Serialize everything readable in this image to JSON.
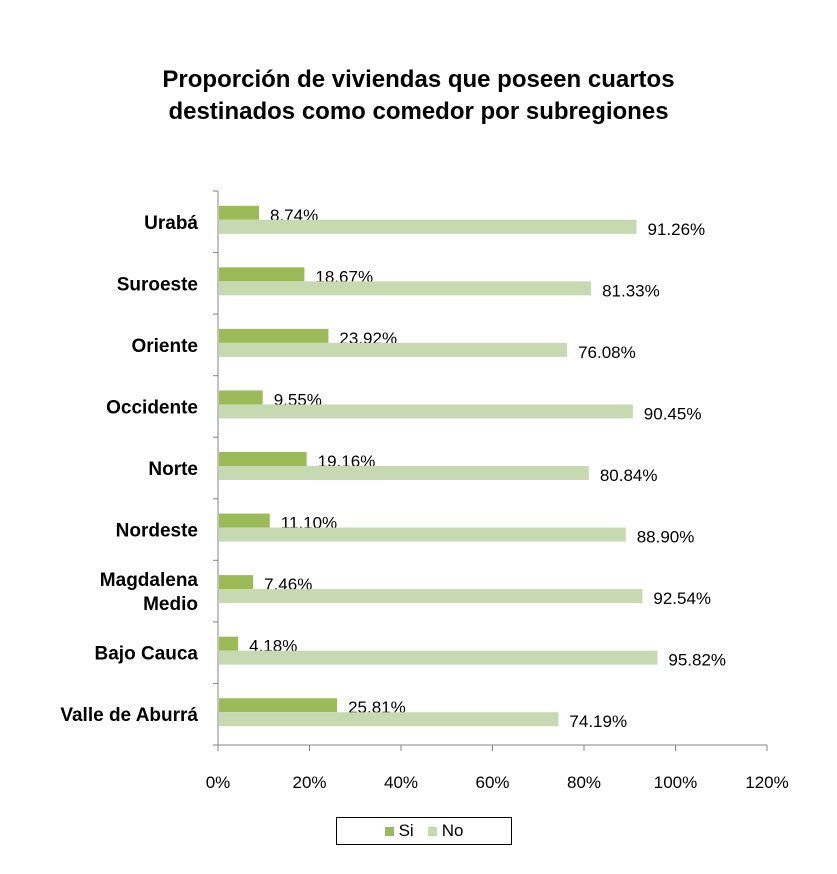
{
  "chart_data": {
    "type": "bar",
    "orientation": "horizontal",
    "title_lines": [
      "Proporción de viviendas que poseen cuartos",
      "destinados como comedor por subregiones"
    ],
    "categories": [
      "Urabá",
      "Suroeste",
      "Oriente",
      "Occidente",
      "Norte",
      "Nordeste",
      "Magdalena Medio",
      "Bajo Cauca",
      "Valle de Aburrá"
    ],
    "category_label_lines": [
      [
        "Urabá"
      ],
      [
        "Suroeste"
      ],
      [
        "Oriente"
      ],
      [
        "Occidente"
      ],
      [
        "Norte"
      ],
      [
        "Nordeste"
      ],
      [
        "Magdalena",
        "Medio"
      ],
      [
        "Bajo Cauca"
      ],
      [
        "Valle de Aburrá"
      ]
    ],
    "series": [
      {
        "name": "Si",
        "color": "#9bbb59",
        "values": [
          8.74,
          18.67,
          23.92,
          9.55,
          19.16,
          11.1,
          7.46,
          4.18,
          25.81
        ],
        "labels": [
          "8.74%",
          "18.67%",
          "23.92%",
          "9.55%",
          "19.16%",
          "11.10%",
          "7.46%",
          "4.18%",
          "25.81%"
        ]
      },
      {
        "name": "No",
        "color": "#c6d9b0",
        "values": [
          91.26,
          81.33,
          76.08,
          90.45,
          80.84,
          88.9,
          92.54,
          95.82,
          74.19
        ],
        "labels": [
          "91.26%",
          "81.33%",
          "76.08%",
          "90.45%",
          "80.84%",
          "88.90%",
          "92.54%",
          "95.82%",
          "74.19%"
        ]
      }
    ],
    "xlim": [
      0,
      120
    ],
    "x_ticks": [
      0,
      20,
      40,
      60,
      80,
      100,
      120
    ],
    "x_tick_labels": [
      "0%",
      "20%",
      "40%",
      "60%",
      "80%",
      "100%",
      "120%"
    ],
    "grid": false,
    "legend_position": "bottom"
  }
}
